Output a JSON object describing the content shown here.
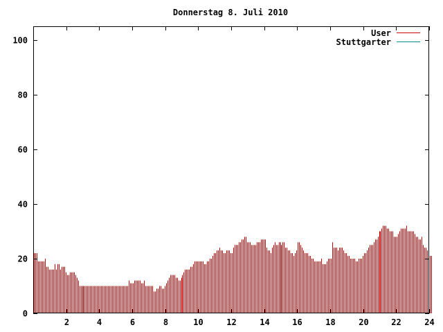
{
  "chart_data": {
    "type": "bar",
    "title": "Donnerstag 8. Juli 2010",
    "xlabel": "",
    "ylabel": "",
    "xlim": [
      0,
      24
    ],
    "ylim": [
      0,
      105
    ],
    "grid": false,
    "legend_position": "top-right",
    "x_ticks": [
      2,
      4,
      6,
      8,
      10,
      12,
      14,
      16,
      18,
      20,
      22,
      24
    ],
    "x_tick_labels": [
      "2",
      "4",
      "6",
      "8",
      "10",
      "12",
      "14",
      "16",
      "18",
      "20",
      "22",
      "24"
    ],
    "y_ticks": [
      0,
      20,
      40,
      60,
      80,
      100
    ],
    "y_tick_labels": [
      "0",
      "20",
      "40",
      "60",
      "80",
      "100"
    ],
    "interval_minutes": 5,
    "series": [
      {
        "name": "User",
        "color": "#cc0000",
        "values": [
          22,
          22,
          22,
          19,
          19,
          19,
          19,
          19,
          20,
          17,
          17,
          16,
          16,
          16,
          16,
          18,
          16,
          18,
          18,
          16,
          17,
          17,
          17,
          15,
          14,
          14,
          15,
          15,
          15,
          15,
          14,
          13,
          12,
          10,
          10,
          10,
          10,
          10,
          10,
          10,
          10,
          10,
          10,
          10,
          10,
          10,
          10,
          10,
          10,
          10,
          10,
          10,
          10,
          10,
          10,
          10,
          10,
          10,
          10,
          10,
          10,
          10,
          10,
          10,
          10,
          10,
          10,
          10,
          10,
          12,
          11,
          11,
          11,
          12,
          12,
          12,
          12,
          12,
          11,
          11,
          12,
          10,
          10,
          10,
          10,
          10,
          10,
          8,
          8,
          9,
          9,
          10,
          10,
          9,
          9,
          10,
          11,
          12,
          13,
          14,
          14,
          14,
          14,
          13,
          13,
          12,
          12,
          13,
          14,
          15,
          16,
          16,
          16,
          16,
          17,
          17,
          18,
          19,
          19,
          19,
          19,
          19,
          19,
          19,
          18,
          18,
          19,
          19,
          20,
          20,
          21,
          22,
          22,
          23,
          23,
          24,
          23,
          23,
          22,
          22,
          23,
          23,
          23,
          22,
          22,
          24,
          25,
          25,
          25,
          26,
          26,
          27,
          27,
          28,
          28,
          26,
          26,
          26,
          25,
          25,
          25,
          25,
          26,
          26,
          26,
          27,
          27,
          27,
          27,
          24,
          23,
          23,
          22,
          24,
          25,
          26,
          25,
          25,
          26,
          26,
          25,
          26,
          26,
          24,
          24,
          23,
          23,
          22,
          22,
          21,
          22,
          23,
          26,
          26,
          25,
          24,
          23,
          22,
          22,
          22,
          21,
          21,
          20,
          20,
          19,
          19,
          19,
          19,
          19,
          20,
          18,
          18,
          18,
          19,
          20,
          20,
          20,
          26,
          24,
          24,
          24,
          23,
          24,
          24,
          24,
          23,
          22,
          22,
          21,
          21,
          20,
          20,
          20,
          20,
          19,
          19,
          20,
          20,
          20,
          21,
          22,
          22,
          23,
          24,
          25,
          25,
          25,
          26,
          27,
          27,
          28,
          30,
          30,
          31,
          32,
          32,
          32,
          31,
          31,
          30,
          30,
          30,
          28,
          28,
          28,
          29,
          30,
          31,
          31,
          31,
          31,
          32,
          30,
          30,
          30,
          30,
          30,
          29,
          28,
          28,
          27,
          27,
          28,
          25,
          24,
          24,
          23,
          22,
          21,
          21
        ]
      },
      {
        "name": "Stuttgarter",
        "color": "#008b8b",
        "values": []
      }
    ]
  }
}
